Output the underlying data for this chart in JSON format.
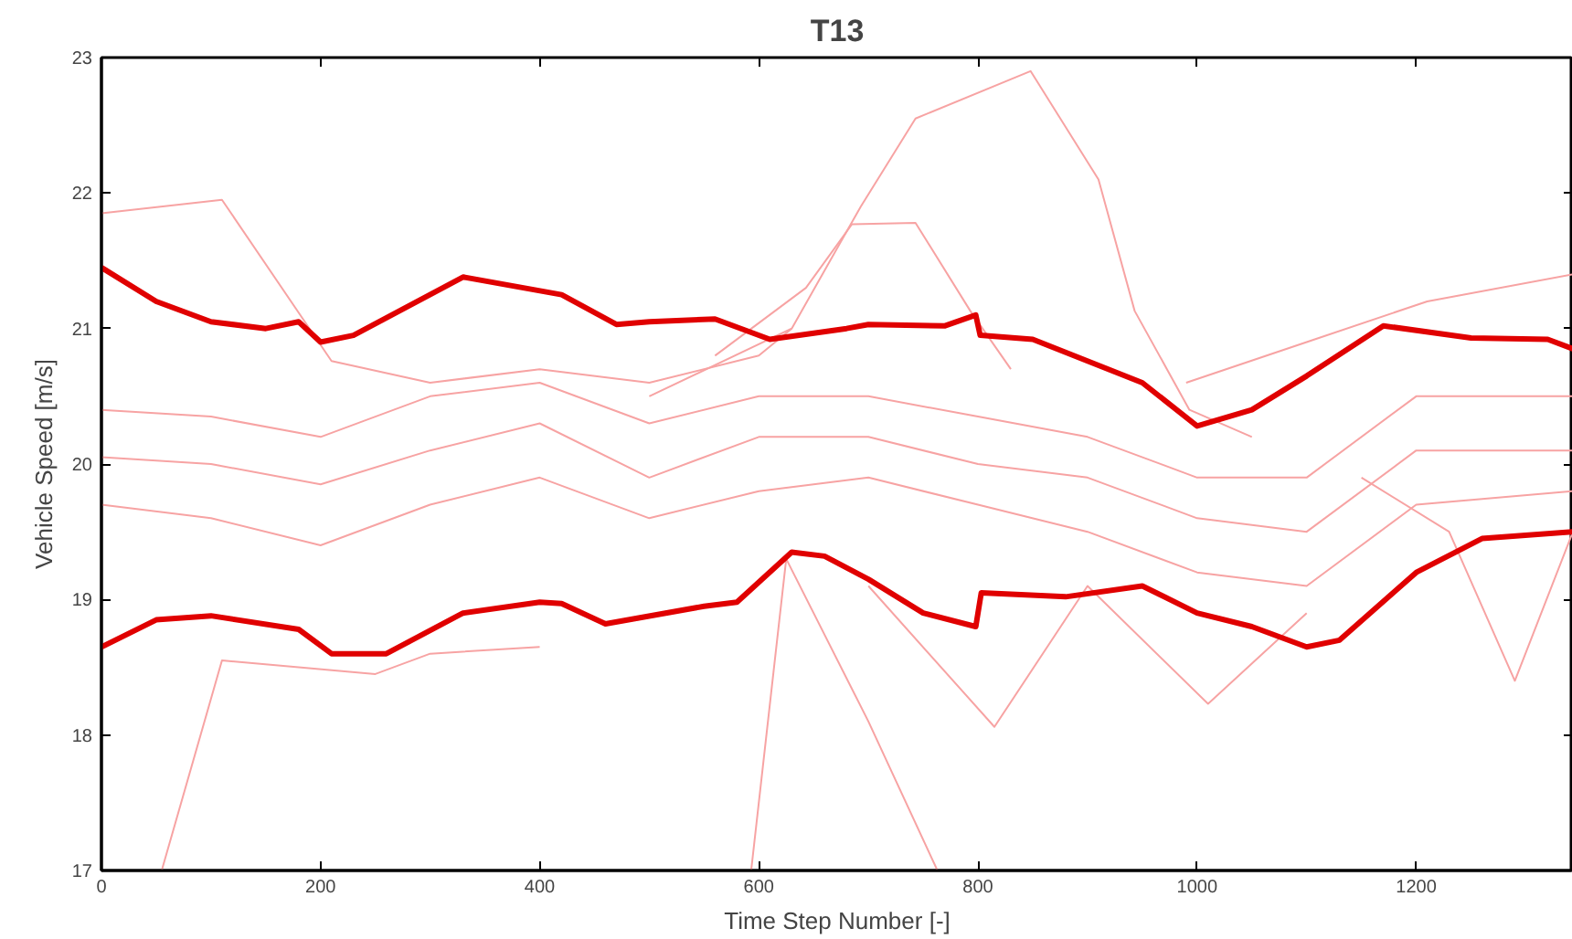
{
  "chart_data": {
    "type": "line",
    "title": "T13",
    "xlabel": "Time Step Number [-]",
    "ylabel": "Vehicle Speed [m/s]",
    "xlim": [
      0,
      1343
    ],
    "ylim": [
      17,
      23
    ],
    "xticks": [
      0,
      200,
      400,
      600,
      800,
      1000,
      1200
    ],
    "yticks": [
      17,
      18,
      19,
      20,
      21,
      22,
      23
    ],
    "grid": false,
    "series": [
      {
        "color": "#f7a3a3",
        "x": [
          0,
          100,
          200,
          300,
          400,
          500,
          600,
          700,
          800,
          900,
          1000,
          1100,
          1200,
          1343
        ],
        "values": [
          20.05,
          20.0,
          19.85,
          20.1,
          20.3,
          19.9,
          20.2,
          20.2,
          20.0,
          19.9,
          19.6,
          19.5,
          20.1,
          20.1
        ]
      },
      {
        "color": "#f7a3a3",
        "x": [
          0,
          100,
          200,
          300,
          400,
          500,
          600,
          700,
          800,
          900,
          1000,
          1100,
          1200,
          1343
        ],
        "values": [
          20.4,
          20.35,
          20.2,
          20.5,
          20.6,
          20.3,
          20.5,
          20.5,
          20.35,
          20.2,
          19.9,
          19.9,
          20.5,
          20.5
        ]
      },
      {
        "color": "#f7a3a3",
        "x": [
          0,
          100,
          200,
          300,
          400,
          500,
          600,
          700,
          800,
          900,
          1000,
          1100,
          1200,
          1343
        ],
        "values": [
          19.7,
          19.6,
          19.4,
          19.7,
          19.9,
          19.6,
          19.8,
          19.9,
          19.7,
          19.5,
          19.2,
          19.1,
          19.7,
          19.8
        ]
      },
      {
        "color": "#f7a3a3",
        "x": [
          0,
          110,
          210,
          300,
          400,
          500,
          600,
          630
        ],
        "values": [
          21.85,
          21.95,
          20.76,
          20.6,
          20.7,
          20.6,
          20.8,
          21.0
        ]
      },
      {
        "color": "#f7a3a3",
        "x": [
          500,
          630,
          693,
          743,
          848,
          910,
          943,
          993,
          1050
        ],
        "values": [
          20.5,
          21.0,
          21.9,
          22.55,
          22.9,
          22.1,
          21.13,
          20.4,
          20.2
        ]
      },
      {
        "color": "#f7a3a3",
        "x": [
          560,
          643,
          685,
          743,
          793,
          830
        ],
        "values": [
          20.8,
          21.3,
          21.77,
          21.78,
          21.13,
          20.7
        ]
      },
      {
        "color": "#f7a3a3",
        "x": [
          55,
          110,
          250,
          300,
          400
        ],
        "values": [
          17.0,
          18.55,
          18.45,
          18.6,
          18.65
        ]
      },
      {
        "color": "#f7a3a3",
        "x": [
          593,
          625,
          700,
          763
        ],
        "values": [
          17.0,
          19.3,
          18.1,
          17.0
        ]
      },
      {
        "color": "#f7a3a3",
        "x": [
          700,
          815,
          900,
          1010,
          1100
        ],
        "values": [
          19.1,
          18.06,
          19.1,
          18.23,
          18.9
        ]
      },
      {
        "color": "#f7a3a3",
        "x": [
          990,
          1100,
          1210,
          1343
        ],
        "values": [
          20.6,
          20.9,
          21.2,
          21.4
        ]
      },
      {
        "color": "#f7a3a3",
        "x": [
          1150,
          1230,
          1290,
          1343
        ],
        "values": [
          19.9,
          19.5,
          18.4,
          19.5
        ]
      },
      {
        "color": "#e00000",
        "x": [
          0,
          50,
          100,
          150,
          180,
          200,
          230,
          330,
          420,
          470,
          500,
          560,
          610,
          680,
          700,
          770,
          798,
          802,
          850,
          950,
          1000,
          1050,
          1100,
          1170,
          1250,
          1320,
          1343
        ],
        "values": [
          21.45,
          21.2,
          21.05,
          21.0,
          21.05,
          20.9,
          20.95,
          21.38,
          21.25,
          21.03,
          21.05,
          21.07,
          20.92,
          21.0,
          21.03,
          21.02,
          21.1,
          20.95,
          20.92,
          20.6,
          20.28,
          20.4,
          20.65,
          21.02,
          20.93,
          20.92,
          20.85
        ]
      },
      {
        "color": "#e00000",
        "x": [
          0,
          50,
          100,
          180,
          210,
          260,
          330,
          400,
          420,
          460,
          550,
          580,
          630,
          660,
          700,
          750,
          798,
          803,
          880,
          950,
          1000,
          1050,
          1100,
          1130,
          1200,
          1260,
          1343
        ],
        "values": [
          18.65,
          18.85,
          18.88,
          18.78,
          18.6,
          18.6,
          18.9,
          18.98,
          18.97,
          18.82,
          18.95,
          18.98,
          19.35,
          19.32,
          19.15,
          18.9,
          18.8,
          19.05,
          19.02,
          19.1,
          18.9,
          18.8,
          18.65,
          18.7,
          19.2,
          19.45,
          19.5
        ]
      }
    ]
  }
}
